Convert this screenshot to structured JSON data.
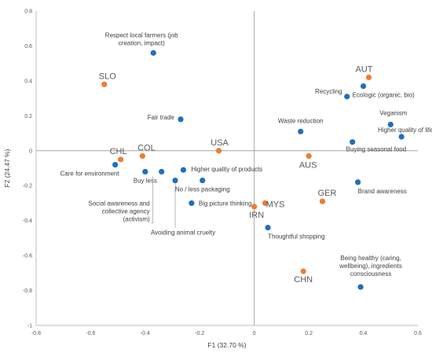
{
  "chart_data": {
    "type": "scatter",
    "xlabel": "F1 (32.70 %)",
    "ylabel": "F2 (24.47 %)",
    "xlim": [
      -0.8,
      0.6
    ],
    "ylim": [
      -1,
      0.8
    ],
    "xticks": [
      "-0.8",
      "-0.6",
      "-0.4",
      "-0.2",
      "0",
      "0.2",
      "0.4",
      "0.6"
    ],
    "yticks": [
      "-1",
      "-0.8",
      "-0.6",
      "-0.4",
      "-0.2",
      "0",
      "0.2",
      "0.4",
      "0.6",
      "0.8"
    ],
    "grid": false,
    "colors": {
      "variables": "#1f6fbf",
      "countries": "#ed7d31",
      "origin_lines": "#a6a6a6",
      "axes": "#bfbfbf"
    },
    "series": [
      {
        "points": [
          {
            "label": "Respect local farmers (job\ncreation, impact)",
            "x": -0.37,
            "y": 0.56
          },
          {
            "label": "Fair trade",
            "x": -0.27,
            "y": 0.18
          },
          {
            "label": "Recycling",
            "x": 0.34,
            "y": 0.31
          },
          {
            "label": "Ecologic (organic, bio)",
            "x": 0.4,
            "y": 0.37
          },
          {
            "label": "Veganism",
            "x": 0.5,
            "y": 0.15
          },
          {
            "label": "Waste reduction",
            "x": 0.17,
            "y": 0.11
          },
          {
            "label": "Higher quality of life",
            "x": 0.54,
            "y": 0.08
          },
          {
            "label": "Buying seasonal food",
            "x": 0.36,
            "y": 0.05
          },
          {
            "label": "Care for environment",
            "x": -0.51,
            "y": -0.08
          },
          {
            "label": "Buy less",
            "x": -0.4,
            "y": -0.12
          },
          {
            "label": "Social awareness and\ncollective agency\n(activism)",
            "x": -0.34,
            "y": -0.12
          },
          {
            "label": "Higher quality of products",
            "x": -0.26,
            "y": -0.11
          },
          {
            "label": "No / less  packaging",
            "x": -0.19,
            "y": -0.17
          },
          {
            "label": "Avoiding animal cruelty",
            "x": -0.29,
            "y": -0.17
          },
          {
            "label": "Big picture thinking",
            "x": -0.23,
            "y": -0.3
          },
          {
            "label": "Brand awareness",
            "x": 0.38,
            "y": -0.18
          },
          {
            "label": "Thoughtful shopping",
            "x": 0.05,
            "y": -0.44
          },
          {
            "label": "Being healthy (caring,\nwellbeing), ingredients\nconsciousness",
            "x": 0.39,
            "y": -0.78
          }
        ]
      },
      {
        "points": [
          {
            "label": "SLO",
            "x": -0.55,
            "y": 0.38
          },
          {
            "label": "AUT",
            "x": 0.42,
            "y": 0.42
          },
          {
            "label": "USA",
            "x": -0.13,
            "y": 0.0
          },
          {
            "label": "CHL",
            "x": -0.49,
            "y": -0.05
          },
          {
            "label": "COL",
            "x": -0.41,
            "y": -0.03
          },
          {
            "label": "AUS",
            "x": 0.2,
            "y": -0.03
          },
          {
            "label": "GER",
            "x": 0.25,
            "y": -0.29
          },
          {
            "label": "IRN",
            "x": 0.0,
            "y": -0.32
          },
          {
            "label": "MYS",
            "x": 0.04,
            "y": -0.3
          },
          {
            "label": "CHN",
            "x": 0.18,
            "y": -0.69
          }
        ]
      }
    ]
  }
}
